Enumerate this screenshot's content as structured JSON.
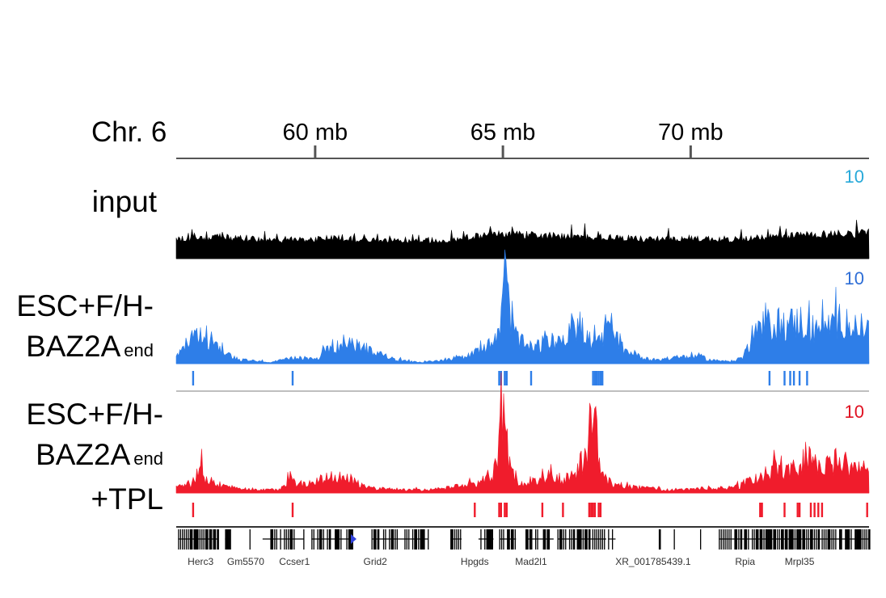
{
  "chart_data": {
    "type": "area",
    "chromosome_label": "Chr. 6",
    "x_unit": "mb",
    "xlim": [
      56.3,
      74.75
    ],
    "ticks": [
      {
        "value": 60,
        "label": "60 mb"
      },
      {
        "value": 65,
        "label": "65 mb"
      },
      {
        "value": 70,
        "label": "70 mb"
      }
    ],
    "tracks": [
      {
        "label_lines": [
          "input"
        ],
        "color": "#000000",
        "scale_label": "10",
        "scale_color": "#27a9d9",
        "ymax": 10,
        "x": [
          56.3,
          57.5,
          59.0,
          60.5,
          62.0,
          63.5,
          64.0,
          65.0,
          66.0,
          67.0,
          68.0,
          69.0,
          70.0,
          71.0,
          72.0,
          73.0,
          74.0,
          74.75
        ],
        "y": [
          1.0,
          1.1,
          0.95,
          1.05,
          0.9,
          0.95,
          1.1,
          1.3,
          1.2,
          1.1,
          1.1,
          1.0,
          1.05,
          1.0,
          1.1,
          1.25,
          1.3,
          1.3
        ],
        "peaks": []
      },
      {
        "label_lines": [
          "ESC+F/H-",
          "BAZ2A"
        ],
        "label_suffix": "end",
        "color": "#2e7ee8",
        "scale_label": "10",
        "scale_color": "#2e6ed6",
        "ymax": 10,
        "x": [
          56.3,
          56.8,
          57.2,
          57.6,
          58.0,
          58.4,
          58.8,
          59.2,
          59.6,
          60.0,
          60.4,
          60.8,
          61.2,
          61.6,
          62.0,
          62.4,
          62.8,
          63.2,
          63.6,
          64.0,
          64.3,
          64.6,
          64.8,
          64.95,
          65.05,
          65.2,
          65.4,
          65.6,
          65.8,
          66.1,
          66.4,
          66.7,
          66.9,
          67.1,
          67.3,
          67.5,
          67.7,
          67.9,
          68.2,
          68.6,
          69.0,
          69.4,
          69.8,
          70.2,
          70.5,
          70.8,
          71.1,
          71.4,
          71.7,
          72.0,
          72.3,
          72.6,
          72.9,
          73.2,
          73.5,
          73.8,
          74.1,
          74.4,
          74.75
        ],
        "y": [
          0.5,
          2.2,
          1.8,
          0.9,
          0.3,
          0.2,
          0.1,
          0.3,
          0.5,
          0.3,
          1.2,
          1.5,
          1.3,
          1.0,
          0.4,
          0.2,
          0.1,
          0.2,
          0.4,
          0.5,
          0.8,
          1.5,
          1.7,
          3.5,
          6.8,
          4.0,
          1.8,
          1.4,
          1.2,
          1.6,
          1.7,
          1.9,
          3.2,
          2.6,
          1.8,
          1.6,
          2.2,
          2.9,
          1.2,
          0.6,
          0.3,
          0.4,
          0.5,
          0.6,
          0.3,
          0.2,
          0.2,
          0.5,
          2.5,
          2.9,
          3.1,
          3.0,
          3.3,
          2.7,
          2.8,
          3.1,
          3.5,
          2.7,
          2.9
        ],
        "peaks": [
          56.75,
          59.4,
          64.9,
          64.95,
          65.05,
          65.1,
          65.75,
          67.4,
          67.45,
          67.5,
          67.55,
          67.6,
          67.65,
          72.1,
          72.5,
          72.65,
          72.75,
          72.9,
          73.1
        ]
      },
      {
        "label_lines": [
          "ESC+F/H-",
          "BAZ2A",
          "+TPL"
        ],
        "label_suffix": "end",
        "color": "#f01c2c",
        "scale_label": "10",
        "scale_color": "#e01020",
        "ymax": 10,
        "x": [
          56.3,
          56.8,
          56.95,
          57.1,
          57.4,
          57.8,
          58.2,
          58.6,
          59.0,
          59.2,
          59.35,
          59.5,
          59.8,
          60.2,
          60.6,
          61.0,
          61.4,
          61.8,
          62.2,
          62.6,
          63.0,
          63.4,
          63.8,
          64.2,
          64.5,
          64.7,
          64.85,
          64.95,
          65.05,
          65.2,
          65.4,
          65.7,
          66.0,
          66.3,
          66.6,
          66.9,
          67.1,
          67.25,
          67.4,
          67.55,
          67.7,
          67.9,
          68.2,
          68.6,
          69.0,
          69.4,
          69.8,
          70.2,
          70.6,
          71.0,
          71.3,
          71.6,
          71.9,
          72.2,
          72.5,
          72.8,
          73.1,
          73.4,
          73.7,
          74.0,
          74.3,
          74.75
        ],
        "y": [
          0.6,
          0.8,
          3.4,
          1.2,
          0.9,
          0.5,
          0.4,
          0.3,
          0.3,
          0.6,
          2.4,
          1.0,
          0.9,
          1.3,
          1.6,
          1.2,
          0.5,
          0.4,
          0.3,
          0.3,
          0.3,
          0.4,
          0.6,
          0.8,
          1.2,
          1.5,
          3.0,
          8.2,
          6.5,
          2.0,
          0.9,
          1.0,
          1.2,
          1.4,
          1.3,
          1.8,
          2.3,
          4.0,
          9.6,
          3.2,
          1.5,
          1.0,
          0.7,
          0.5,
          0.4,
          0.3,
          0.3,
          0.4,
          0.4,
          0.5,
          0.6,
          1.3,
          1.5,
          2.3,
          2.1,
          2.0,
          3.6,
          2.2,
          2.5,
          3.6,
          2.2,
          2.1
        ],
        "peaks": [
          56.75,
          59.4,
          64.25,
          64.9,
          64.95,
          65.05,
          65.1,
          66.05,
          66.6,
          67.3,
          67.35,
          67.4,
          67.45,
          67.55,
          67.6,
          71.85,
          71.9,
          72.5,
          72.85,
          72.9,
          73.2,
          73.3,
          73.4,
          73.5,
          74.7
        ]
      }
    ],
    "gene_track": {
      "color": "#000000",
      "genes": [
        "Herc3",
        "Gm5570",
        "Ccser1",
        "Grid2",
        "Hpgds",
        "Mad2l1",
        "XR_001785439.1",
        "Rpia",
        "Mrpl35"
      ],
      "label_x": [
        56.95,
        58.15,
        59.45,
        61.6,
        64.25,
        65.75,
        69.0,
        71.45,
        72.9
      ]
    }
  }
}
